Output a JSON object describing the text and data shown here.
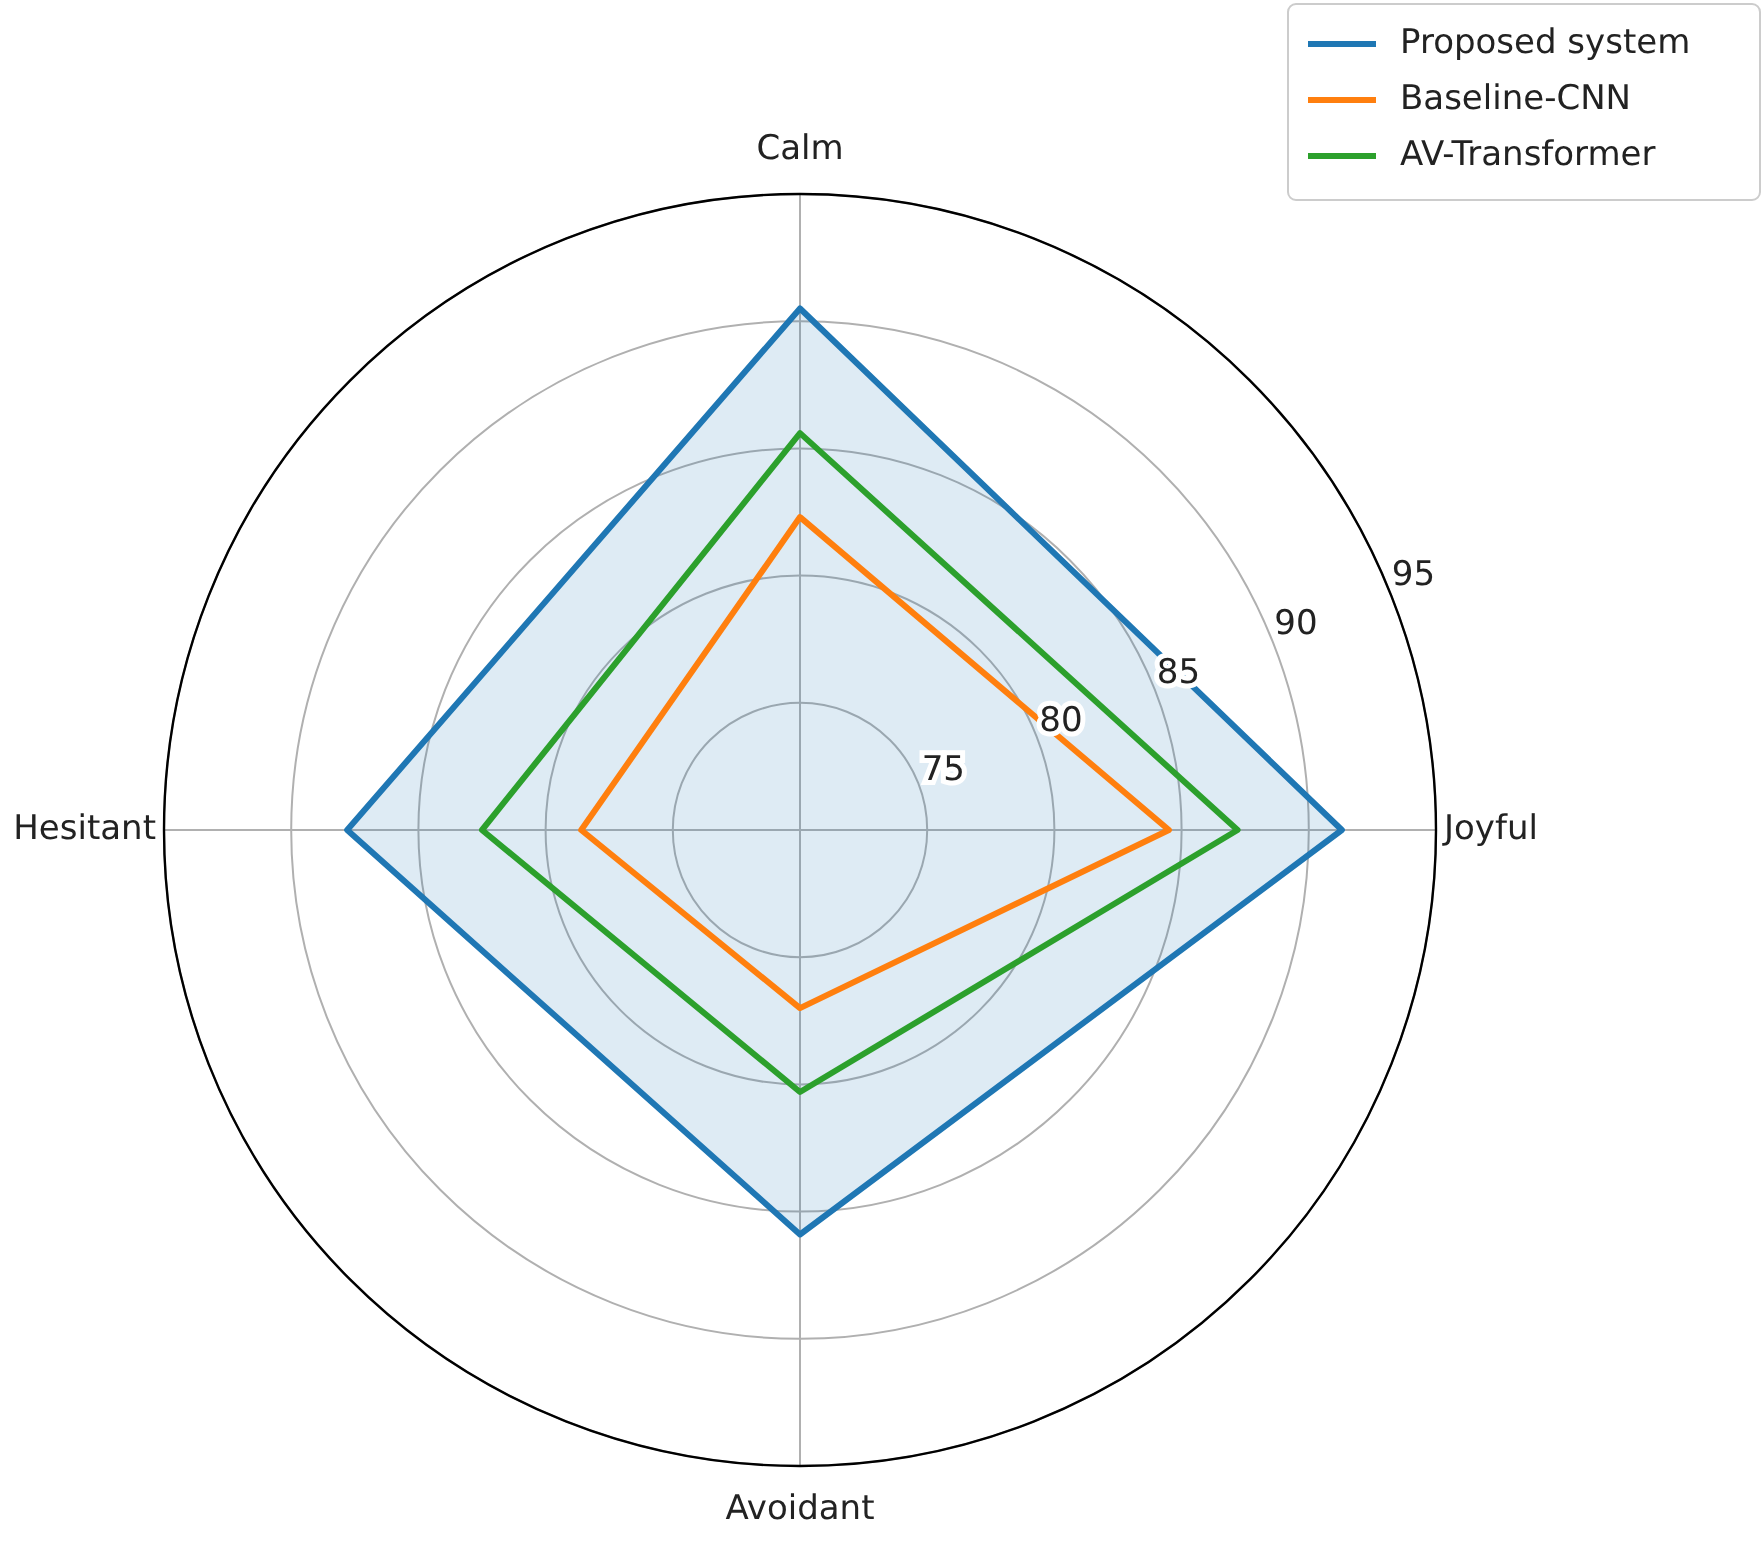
{
  "chart_data": {
    "type": "radar",
    "categories": [
      "Calm",
      "Joyful",
      "Avoidant",
      "Hesitant"
    ],
    "series": [
      {
        "name": "Proposed system",
        "type": "area",
        "color": "#1f77b4",
        "values": [
          90.5,
          91.3,
          85.9,
          87.8
        ]
      },
      {
        "name": "Baseline-CNN",
        "color": "#ff7f0e",
        "values": [
          82.3,
          84.5,
          77.0,
          78.6
        ]
      },
      {
        "name": "AV-Transformer",
        "color": "#2ca02c",
        "values": [
          85.6,
          87.2,
          80.3,
          82.5
        ]
      }
    ],
    "ylim": [
      70,
      95
    ],
    "yticks": [
      75,
      80,
      85,
      90,
      95
    ],
    "grid": true,
    "legend": "top right"
  }
}
